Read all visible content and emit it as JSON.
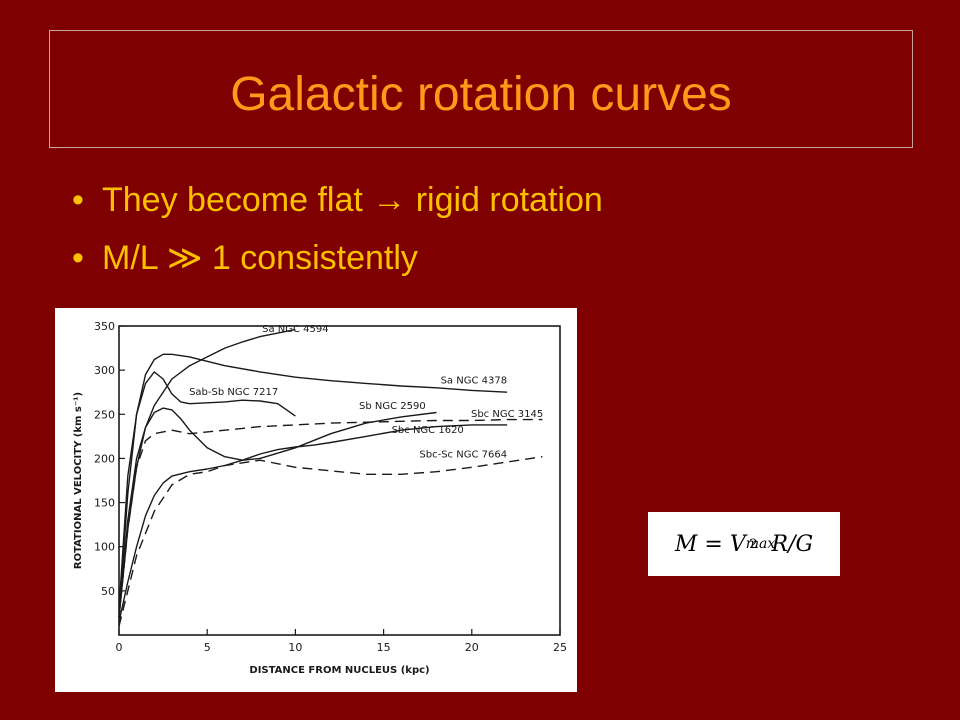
{
  "slide": {
    "title": "Galactic rotation curves",
    "bullets": [
      {
        "pre": "They become flat ",
        "symbol": "→",
        "post": " rigid rotation"
      },
      {
        "pre": "M/L ",
        "symbol": "≫",
        "post": " 1 consistently"
      }
    ],
    "bullet_marker": "•",
    "formula": {
      "lhs": "M",
      "eq": "=",
      "v": "V",
      "sub": "max",
      "sup": "2",
      "rest": "R/G"
    },
    "colors": {
      "background": "#7f0000",
      "title": "#ff9a1a",
      "bullet_text": "#ffc000"
    }
  },
  "chart_data": {
    "type": "line",
    "xlabel": "DISTANCE FROM NUCLEUS (kpc)",
    "ylabel": "ROTATIONAL VELOCITY (km s⁻¹)",
    "xlim": [
      0,
      25
    ],
    "ylim": [
      0,
      350
    ],
    "xticks": [
      0,
      5,
      10,
      15,
      20,
      25
    ],
    "yticks": [
      50,
      100,
      150,
      200,
      250,
      300,
      350
    ],
    "grid": false,
    "series": [
      {
        "name": "Sa NGC 4594",
        "style": "solid",
        "x": [
          0,
          0.5,
          1,
          1.5,
          2,
          3,
          4,
          5,
          6,
          7,
          8,
          9,
          10
        ],
        "y": [
          20,
          120,
          190,
          235,
          260,
          290,
          305,
          315,
          325,
          332,
          338,
          342,
          346
        ]
      },
      {
        "name": "Sa NGC 4378",
        "style": "solid",
        "x": [
          0,
          0.5,
          1,
          1.5,
          2,
          2.5,
          3,
          4,
          5,
          6,
          8,
          10,
          12,
          14,
          16,
          18,
          20,
          22
        ],
        "y": [
          20,
          160,
          250,
          295,
          312,
          318,
          318,
          315,
          310,
          305,
          298,
          292,
          288,
          285,
          282,
          280,
          277,
          275
        ]
      },
      {
        "name": "Sab-Sb NGC 7217",
        "style": "solid",
        "x": [
          0,
          0.5,
          1,
          1.5,
          2,
          2.5,
          3,
          3.5,
          4,
          5,
          6,
          7,
          8,
          9,
          10
        ],
        "y": [
          30,
          180,
          250,
          285,
          298,
          290,
          273,
          264,
          262,
          263,
          264,
          266,
          265,
          262,
          248
        ]
      },
      {
        "name": "Sb NGC 2590",
        "style": "solid",
        "x": [
          0,
          0.5,
          1,
          1.5,
          2,
          2.5,
          3,
          3.5,
          4,
          5,
          6,
          7,
          8,
          10,
          12,
          14,
          16,
          18
        ],
        "y": [
          20,
          130,
          200,
          235,
          252,
          257,
          255,
          245,
          232,
          212,
          202,
          198,
          200,
          212,
          228,
          240,
          247,
          252
        ]
      },
      {
        "name": "Sbc NGC 3145",
        "style": "dashed",
        "x": [
          0,
          0.5,
          1,
          1.5,
          2,
          3,
          4,
          5,
          6,
          8,
          10,
          12,
          14,
          16,
          18,
          20,
          22,
          24
        ],
        "y": [
          20,
          120,
          190,
          220,
          228,
          232,
          228,
          230,
          232,
          236,
          238,
          240,
          241,
          242,
          243,
          243,
          244,
          244
        ]
      },
      {
        "name": "Sbc NGC 1620",
        "style": "solid",
        "x": [
          0,
          0.5,
          1,
          1.5,
          2,
          2.5,
          3,
          4,
          5,
          6,
          7,
          8,
          9,
          10,
          11,
          12,
          14,
          16,
          18,
          20,
          22
        ],
        "y": [
          15,
          60,
          100,
          135,
          158,
          172,
          180,
          185,
          188,
          192,
          198,
          205,
          210,
          213,
          215,
          218,
          225,
          232,
          236,
          238,
          238
        ]
      },
      {
        "name": "Sbc-Sc NGC 7664",
        "style": "dashed",
        "x": [
          0,
          0.5,
          1,
          2,
          3,
          4,
          5,
          6,
          8,
          10,
          12,
          14,
          16,
          18,
          20,
          22,
          24
        ],
        "y": [
          10,
          50,
          90,
          140,
          170,
          182,
          185,
          192,
          198,
          190,
          186,
          182,
          182,
          185,
          190,
          196,
          202
        ]
      }
    ]
  }
}
